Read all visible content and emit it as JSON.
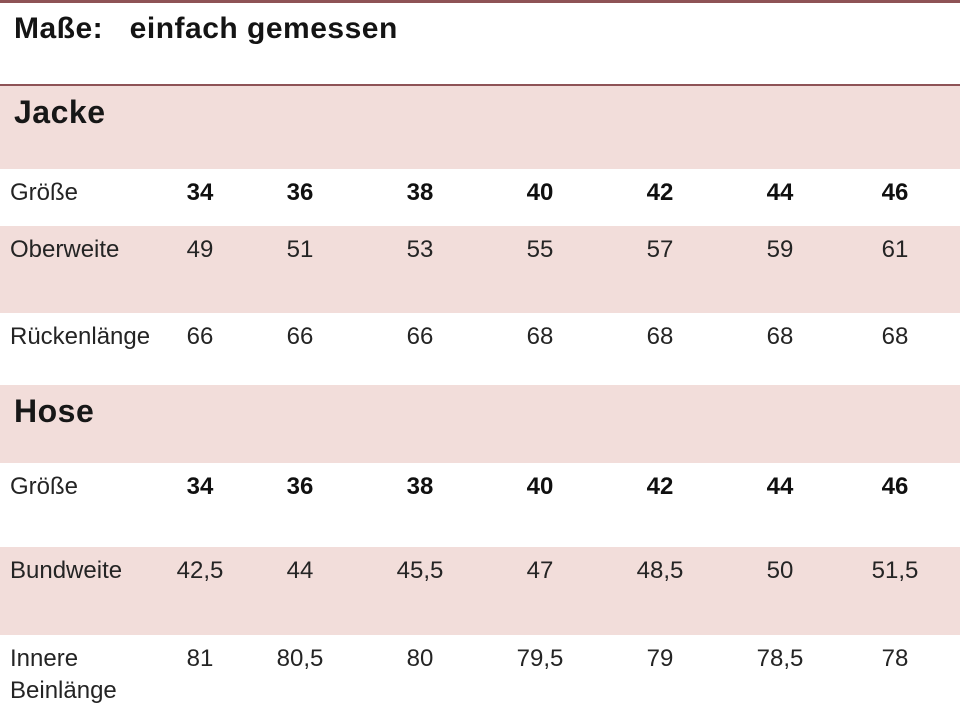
{
  "page": {
    "title": "Maße:   einfach gemessen"
  },
  "colors": {
    "accent_pink": "#f2ddda",
    "accent_maroon": "#8e5356",
    "text": "#1f1f1f"
  },
  "table": {
    "sections": [
      {
        "name": "Jacke",
        "rows": [
          {
            "label": "Größe",
            "bg": "white",
            "values": [
              "34",
              "36",
              "38",
              "40",
              "42",
              "44",
              "46"
            ]
          },
          {
            "label": "Oberweite",
            "bg": "pink",
            "values": [
              "49",
              "51",
              "53",
              "55",
              "57",
              "59",
              "61"
            ]
          },
          {
            "label": "Rückenlänge",
            "bg": "white",
            "values": [
              "66",
              "66",
              "66",
              "68",
              "68",
              "68",
              "68"
            ]
          }
        ]
      },
      {
        "name": "Hose",
        "rows": [
          {
            "label": "Größe",
            "bg": "white",
            "values": [
              "34",
              "36",
              "38",
              "40",
              "42",
              "44",
              "46"
            ]
          },
          {
            "label": "Bundweite",
            "bg": "pink",
            "values": [
              "42,5",
              "44",
              "45,5",
              "47",
              "48,5",
              "50",
              "51,5"
            ]
          },
          {
            "label": "Innere Beinlänge",
            "bg": "white",
            "values": [
              "81",
              "80,5",
              "80",
              "79,5",
              "79",
              "78,5",
              "78"
            ]
          }
        ]
      }
    ]
  }
}
